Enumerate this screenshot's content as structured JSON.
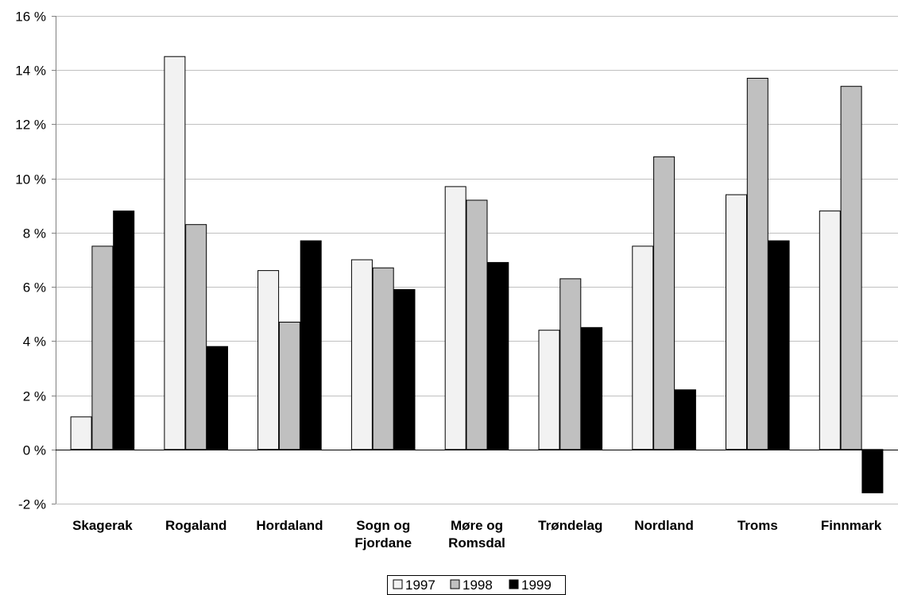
{
  "chart_data": {
    "type": "bar",
    "categories": [
      [
        "Skagerak"
      ],
      [
        "Rogaland"
      ],
      [
        "Hordaland"
      ],
      [
        "Sogn og",
        "Fjordane"
      ],
      [
        "Møre og",
        "Romsdal"
      ],
      [
        "Trøndelag"
      ],
      [
        "Nordland"
      ],
      [
        "Troms"
      ],
      [
        "Finnmark"
      ]
    ],
    "series": [
      {
        "name": "1997",
        "color": "#f2f2f2",
        "values": [
          1.2,
          14.5,
          6.6,
          7.0,
          9.7,
          4.4,
          7.5,
          9.4,
          8.8
        ]
      },
      {
        "name": "1998",
        "color": "#c0c0c0",
        "values": [
          7.5,
          8.3,
          4.7,
          6.7,
          9.2,
          6.3,
          10.8,
          13.7,
          13.4
        ]
      },
      {
        "name": "1999",
        "color": "#000000",
        "values": [
          8.8,
          3.8,
          7.7,
          5.9,
          6.9,
          4.5,
          2.2,
          7.7,
          -1.6
        ]
      }
    ],
    "y_ticks": [
      {
        "value": 16,
        "label": "16 %"
      },
      {
        "value": 14,
        "label": "14 %"
      },
      {
        "value": 12,
        "label": "12 %"
      },
      {
        "value": 10,
        "label": "10 %"
      },
      {
        "value": 8,
        "label": "8 %"
      },
      {
        "value": 6,
        "label": "6 %"
      },
      {
        "value": 4,
        "label": "4 %"
      },
      {
        "value": 2,
        "label": "2 %"
      },
      {
        "value": 0,
        "label": "0 %"
      },
      {
        "value": -2,
        "label": "-2 %"
      }
    ],
    "ylim": [
      -2,
      16
    ],
    "grid": true,
    "legend_position": "bottom-center"
  }
}
